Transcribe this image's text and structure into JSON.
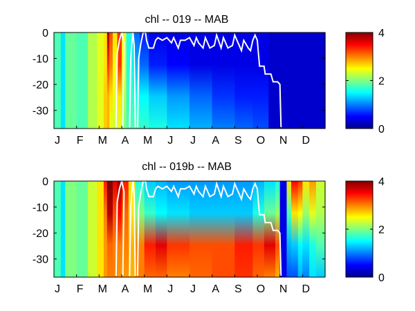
{
  "chart_data": [
    {
      "type": "heatmap",
      "title": "chl -- 019 -- MAB",
      "xlabel": "",
      "ylabel": "",
      "x_tick_labels": [
        "J",
        "F",
        "M",
        "A",
        "M",
        "J",
        "J",
        "A",
        "S",
        "O",
        "N",
        "D"
      ],
      "y_ticks": [
        0,
        -10,
        -20,
        -30
      ],
      "ylim": [
        -37,
        0
      ],
      "xlim_months": [
        0,
        12
      ],
      "colorbar": {
        "range": [
          0,
          4
        ],
        "ticks": [
          0,
          2,
          4
        ],
        "colormap": "jet"
      },
      "line_color": "#ffffff",
      "depth_columns": [
        {
          "x": 0.0,
          "values": [
            1.8,
            1.8,
            1.8,
            1.8
          ]
        },
        {
          "x": 0.3,
          "values": [
            1.4,
            1.4,
            1.4,
            1.4
          ]
        },
        {
          "x": 0.5,
          "values": [
            1.9,
            1.9,
            1.9,
            1.9
          ]
        },
        {
          "x": 1.0,
          "values": [
            1.8,
            1.8,
            1.8,
            1.8
          ]
        },
        {
          "x": 1.5,
          "values": [
            2.2,
            2.2,
            2.2,
            2.2
          ]
        },
        {
          "x": 1.9,
          "values": [
            2.4,
            2.4,
            2.4,
            2.4
          ]
        },
        {
          "x": 2.2,
          "values": [
            2.6,
            2.6,
            2.7,
            2.7
          ]
        },
        {
          "x": 2.35,
          "values": [
            3.9,
            3.3,
            2.8,
            2.8
          ]
        },
        {
          "x": 2.45,
          "values": [
            3.2,
            3.0,
            2.6,
            2.4
          ]
        },
        {
          "x": 2.6,
          "values": [
            2.6,
            2.5,
            2.4,
            2.3
          ]
        },
        {
          "x": 2.8,
          "values": [
            3.3,
            3.3,
            2.6,
            2.4
          ]
        },
        {
          "x": 3.0,
          "values": [
            2.4,
            2.4,
            2.2,
            2.0
          ]
        },
        {
          "x": 3.2,
          "values": [
            1.6,
            1.6,
            1.7,
            1.8
          ]
        },
        {
          "x": 3.5,
          "values": [
            0.9,
            1.2,
            1.6,
            1.8
          ]
        },
        {
          "x": 3.8,
          "values": [
            0.6,
            0.9,
            1.5,
            1.7
          ]
        },
        {
          "x": 4.2,
          "values": [
            0.4,
            0.6,
            1.3,
            1.6
          ]
        },
        {
          "x": 5.0,
          "values": [
            0.4,
            0.5,
            1.1,
            1.4
          ]
        },
        {
          "x": 6.0,
          "values": [
            0.4,
            0.4,
            0.9,
            1.2
          ]
        },
        {
          "x": 7.0,
          "values": [
            0.4,
            0.4,
            0.7,
            1.0
          ]
        },
        {
          "x": 8.0,
          "values": [
            0.4,
            0.4,
            0.6,
            0.9
          ]
        },
        {
          "x": 8.8,
          "values": [
            0.4,
            0.4,
            0.6,
            0.8
          ]
        },
        {
          "x": 9.5,
          "values": [
            0.3,
            0.3,
            0.3,
            0.3
          ]
        },
        {
          "x": 12.0,
          "values": [
            0.2,
            0.2,
            0.2,
            0.2
          ]
        }
      ],
      "mixed_layer_line": [
        [
          3.7,
          -36.5
        ],
        [
          3.75,
          -10
        ],
        [
          3.85,
          -4
        ],
        [
          3.95,
          0
        ],
        [
          4.05,
          0
        ],
        [
          4.1,
          -3
        ],
        [
          4.2,
          -6
        ],
        [
          4.4,
          -6
        ],
        [
          4.5,
          -3
        ],
        [
          4.6,
          -2
        ],
        [
          4.8,
          -3
        ],
        [
          5.0,
          -2
        ],
        [
          5.2,
          -4
        ],
        [
          5.3,
          -2
        ],
        [
          5.5,
          -6
        ],
        [
          5.6,
          -3
        ],
        [
          5.8,
          -3
        ],
        [
          6.0,
          -2
        ],
        [
          6.2,
          -5
        ],
        [
          6.3,
          -2
        ],
        [
          6.4,
          -4
        ],
        [
          6.6,
          -6
        ],
        [
          6.7,
          -2
        ],
        [
          6.9,
          -6
        ],
        [
          7.1,
          -5
        ],
        [
          7.2,
          -1
        ],
        [
          7.4,
          -6
        ],
        [
          7.5,
          -2
        ],
        [
          7.7,
          -6
        ],
        [
          7.9,
          -5
        ],
        [
          8.0,
          -1
        ],
        [
          8.1,
          -3
        ],
        [
          8.3,
          -7
        ],
        [
          8.4,
          -3
        ],
        [
          8.6,
          -6
        ],
        [
          8.7,
          -7
        ],
        [
          8.8,
          -3
        ],
        [
          8.9,
          -1
        ],
        [
          9.0,
          -3
        ],
        [
          9.05,
          -8
        ],
        [
          9.1,
          -13
        ],
        [
          9.3,
          -13
        ],
        [
          9.35,
          -16
        ],
        [
          9.6,
          -16
        ],
        [
          9.7,
          -19
        ],
        [
          9.9,
          -19
        ],
        [
          10.0,
          -20
        ],
        [
          10.05,
          -36.5
        ]
      ],
      "early_lines": [
        [
          [
            2.75,
            -36.5
          ],
          [
            2.8,
            -8
          ],
          [
            2.9,
            -3
          ],
          [
            3.0,
            0
          ],
          [
            3.1,
            -4
          ],
          [
            3.05,
            -36.5
          ]
        ],
        [
          [
            3.35,
            -36.5
          ],
          [
            3.4,
            -10
          ],
          [
            3.45,
            -4
          ],
          [
            3.5,
            0
          ],
          [
            3.55,
            -5
          ],
          [
            3.6,
            -36.5
          ]
        ]
      ]
    },
    {
      "type": "heatmap",
      "title": "chl -- 019b -- MAB",
      "xlabel": "",
      "ylabel": "",
      "x_tick_labels": [
        "J",
        "F",
        "M",
        "A",
        "M",
        "J",
        "J",
        "A",
        "S",
        "O",
        "N",
        "D"
      ],
      "y_ticks": [
        0,
        -10,
        -20,
        -30
      ],
      "ylim": [
        -37,
        0
      ],
      "xlim_months": [
        0,
        12
      ],
      "colorbar": {
        "range": [
          0,
          4
        ],
        "ticks": [
          0,
          2,
          4
        ],
        "colormap": "jet"
      },
      "line_color": "#ffffff",
      "depth_columns": [
        {
          "x": 0.0,
          "values": [
            1.8,
            1.8,
            1.8,
            1.8
          ]
        },
        {
          "x": 0.3,
          "values": [
            1.4,
            1.4,
            1.4,
            1.4
          ]
        },
        {
          "x": 0.5,
          "values": [
            2.0,
            2.0,
            2.0,
            2.0
          ]
        },
        {
          "x": 1.0,
          "values": [
            1.9,
            1.9,
            1.9,
            1.9
          ]
        },
        {
          "x": 1.5,
          "values": [
            2.3,
            2.3,
            2.3,
            2.3
          ]
        },
        {
          "x": 1.9,
          "values": [
            2.6,
            2.6,
            2.6,
            2.6
          ]
        },
        {
          "x": 2.2,
          "values": [
            3.4,
            3.0,
            2.9,
            2.9
          ]
        },
        {
          "x": 2.35,
          "values": [
            4.0,
            3.8,
            3.1,
            3.0
          ]
        },
        {
          "x": 2.6,
          "values": [
            3.6,
            3.2,
            3.0,
            3.0
          ]
        },
        {
          "x": 2.8,
          "values": [
            3.9,
            3.5,
            3.0,
            2.9
          ]
        },
        {
          "x": 3.0,
          "values": [
            3.4,
            3.1,
            3.0,
            2.9
          ]
        },
        {
          "x": 3.3,
          "values": [
            2.6,
            2.6,
            2.8,
            2.8
          ]
        },
        {
          "x": 3.6,
          "values": [
            1.6,
            2.0,
            3.0,
            3.0
          ]
        },
        {
          "x": 4.0,
          "values": [
            1.3,
            1.7,
            3.4,
            3.1
          ]
        },
        {
          "x": 4.5,
          "values": [
            1.2,
            1.5,
            3.6,
            3.1
          ]
        },
        {
          "x": 5.0,
          "values": [
            1.1,
            1.4,
            3.3,
            3.0
          ]
        },
        {
          "x": 6.0,
          "values": [
            1.1,
            1.3,
            3.2,
            3.1
          ]
        },
        {
          "x": 7.0,
          "values": [
            1.1,
            1.3,
            3.2,
            3.2
          ]
        },
        {
          "x": 8.0,
          "values": [
            1.1,
            1.3,
            3.4,
            3.3
          ]
        },
        {
          "x": 8.8,
          "values": [
            1.2,
            1.6,
            3.3,
            3.1
          ]
        },
        {
          "x": 9.3,
          "values": [
            1.4,
            1.9,
            3.6,
            3.0
          ]
        },
        {
          "x": 9.8,
          "values": [
            1.6,
            2.1,
            3.2,
            2.8
          ]
        },
        {
          "x": 10.0,
          "values": [
            0.4,
            0.4,
            0.4,
            0.4
          ]
        },
        {
          "x": 10.3,
          "values": [
            2.6,
            1.8,
            1.2,
            0.8
          ]
        },
        {
          "x": 10.5,
          "values": [
            3.5,
            2.6,
            1.3,
            0.8
          ]
        },
        {
          "x": 10.8,
          "values": [
            3.3,
            2.5,
            1.5,
            1.2
          ]
        },
        {
          "x": 11.0,
          "values": [
            2.6,
            2.1,
            1.4,
            1.0
          ]
        },
        {
          "x": 11.3,
          "values": [
            2.9,
            2.4,
            1.6,
            1.4
          ]
        },
        {
          "x": 11.6,
          "values": [
            2.3,
            2.2,
            1.8,
            1.3
          ]
        },
        {
          "x": 12.0,
          "values": [
            2.2,
            2.1,
            1.9,
            1.6
          ]
        }
      ],
      "mixed_layer_line": [
        [
          3.7,
          -36.5
        ],
        [
          3.75,
          -10
        ],
        [
          3.85,
          -4
        ],
        [
          3.95,
          0
        ],
        [
          4.05,
          0
        ],
        [
          4.1,
          -3
        ],
        [
          4.2,
          -6
        ],
        [
          4.4,
          -6
        ],
        [
          4.5,
          -3
        ],
        [
          4.6,
          -2
        ],
        [
          4.8,
          -3
        ],
        [
          5.0,
          -2
        ],
        [
          5.2,
          -4
        ],
        [
          5.3,
          -2
        ],
        [
          5.5,
          -6
        ],
        [
          5.6,
          -3
        ],
        [
          5.8,
          -3
        ],
        [
          6.0,
          -2
        ],
        [
          6.2,
          -5
        ],
        [
          6.3,
          -2
        ],
        [
          6.4,
          -4
        ],
        [
          6.6,
          -6
        ],
        [
          6.7,
          -2
        ],
        [
          6.9,
          -6
        ],
        [
          7.1,
          -5
        ],
        [
          7.2,
          -1
        ],
        [
          7.4,
          -6
        ],
        [
          7.5,
          -2
        ],
        [
          7.7,
          -6
        ],
        [
          7.9,
          -5
        ],
        [
          8.0,
          -1
        ],
        [
          8.1,
          -3
        ],
        [
          8.3,
          -7
        ],
        [
          8.4,
          -3
        ],
        [
          8.6,
          -6
        ],
        [
          8.7,
          -7
        ],
        [
          8.8,
          -3
        ],
        [
          8.9,
          -1
        ],
        [
          9.0,
          -3
        ],
        [
          9.05,
          -8
        ],
        [
          9.1,
          -13
        ],
        [
          9.3,
          -13
        ],
        [
          9.35,
          -16
        ],
        [
          9.6,
          -16
        ],
        [
          9.7,
          -19
        ],
        [
          9.9,
          -19
        ],
        [
          10.0,
          -20
        ],
        [
          10.05,
          -36.5
        ]
      ],
      "early_lines": [
        [
          [
            2.75,
            -36.5
          ],
          [
            2.8,
            -8
          ],
          [
            2.9,
            -3
          ],
          [
            3.0,
            0
          ],
          [
            3.1,
            -4
          ],
          [
            3.05,
            -36.5
          ]
        ],
        [
          [
            3.35,
            -36.5
          ],
          [
            3.4,
            -10
          ],
          [
            3.45,
            -4
          ],
          [
            3.5,
            0
          ],
          [
            3.55,
            -5
          ],
          [
            3.6,
            -36.5
          ]
        ]
      ]
    }
  ]
}
